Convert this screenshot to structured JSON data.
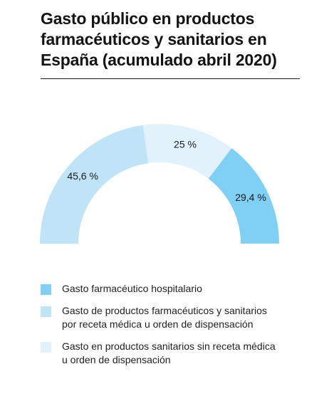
{
  "title": "Gasto público en productos farmacéuticos y sanitarios en España (acumulado abril 2020)",
  "chart_data": {
    "type": "pie",
    "variant": "semi-donut",
    "title": "Gasto público en productos farmacéuticos y sanitarios en España (acumulado abril 2020)",
    "unit": "%",
    "series": [
      {
        "name": "Gasto de productos farmacéuticos y sanitarios por receta médica u orden de dispensación",
        "value": 45.6,
        "label": "45,6 %",
        "color": "#bfe4f8"
      },
      {
        "name": "Gasto en productos sanitarios sin receta médica u orden de dispensación",
        "value": 25,
        "label": "25 %",
        "color": "#e1f2fc"
      },
      {
        "name": "Gasto farmacéutico hospitalario",
        "value": 29.4,
        "label": "29,4 %",
        "color": "#80cff4"
      }
    ],
    "legend": {
      "placement": "bottom",
      "order": [
        "Gasto farmacéutico hospitalario",
        "Gasto de productos farmacéuticos y sanitarios por receta médica u orden de dispensación",
        "Gasto en productos sanitarios sin receta médica u orden de dispensación"
      ]
    }
  }
}
